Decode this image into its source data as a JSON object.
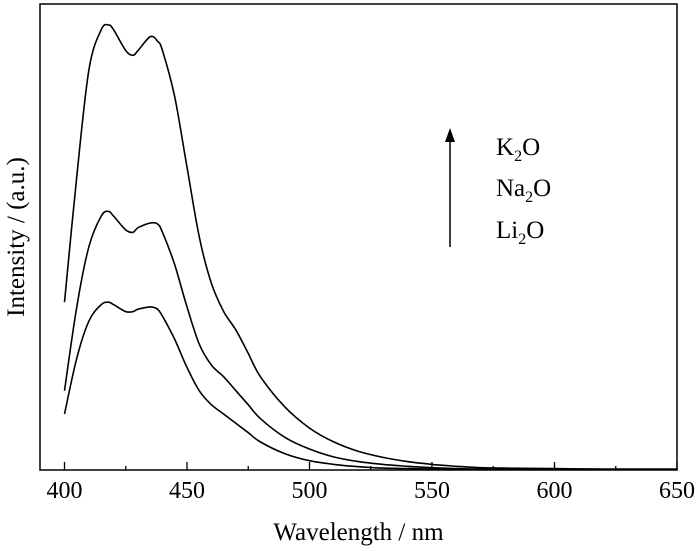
{
  "chart_data": {
    "type": "line",
    "xlabel": "Wavelength / nm",
    "ylabel": "Intensity / (a.u.)",
    "xlim": [
      390,
      650
    ],
    "ylim": [
      0,
      1.0
    ],
    "xticks": [
      400,
      450,
      500,
      550,
      600,
      650
    ],
    "yticks_shown": false,
    "legend_position": "top-right",
    "annotation": {
      "type": "arrow-up",
      "labels": [
        {
          "base": "K",
          "sub": "2",
          "suffix": "O"
        },
        {
          "base": "Na",
          "sub": "2",
          "suffix": "O"
        },
        {
          "base": "Li",
          "sub": "2",
          "suffix": "O"
        }
      ]
    },
    "series": [
      {
        "x": [
          400,
          405,
          410,
          415,
          418,
          420,
          425,
          428,
          430,
          435,
          438,
          440,
          445,
          450,
          455,
          460,
          465,
          470,
          475,
          480,
          490,
          500,
          510,
          520,
          530,
          540,
          550,
          560,
          570,
          580,
          600,
          620,
          650
        ],
        "y": [
          0.36,
          0.63,
          0.86,
          0.945,
          0.955,
          0.945,
          0.9,
          0.89,
          0.9,
          0.93,
          0.92,
          0.9,
          0.8,
          0.65,
          0.5,
          0.4,
          0.34,
          0.3,
          0.25,
          0.2,
          0.135,
          0.09,
          0.06,
          0.04,
          0.027,
          0.018,
          0.012,
          0.008,
          0.005,
          0.004,
          0.003,
          0.002,
          0.002
        ]
      },
      {
        "x": [
          400,
          405,
          410,
          415,
          418,
          420,
          425,
          428,
          430,
          435,
          438,
          440,
          445,
          450,
          455,
          460,
          465,
          470,
          475,
          480,
          490,
          500,
          510,
          520,
          530,
          540,
          550,
          560,
          570,
          580,
          600,
          620,
          650
        ],
        "y": [
          0.17,
          0.35,
          0.48,
          0.545,
          0.555,
          0.545,
          0.515,
          0.51,
          0.52,
          0.53,
          0.528,
          0.51,
          0.44,
          0.35,
          0.27,
          0.225,
          0.2,
          0.17,
          0.14,
          0.11,
          0.07,
          0.045,
          0.028,
          0.018,
          0.012,
          0.008,
          0.005,
          0.003,
          0.002,
          0.002,
          0.001,
          0.001,
          0.001
        ]
      },
      {
        "x": [
          400,
          405,
          410,
          415,
          418,
          420,
          425,
          428,
          430,
          435,
          438,
          440,
          445,
          450,
          455,
          460,
          465,
          470,
          475,
          480,
          490,
          500,
          510,
          520,
          530,
          540,
          550,
          560,
          570,
          580,
          600,
          620,
          650
        ],
        "y": [
          0.12,
          0.24,
          0.32,
          0.355,
          0.36,
          0.355,
          0.34,
          0.34,
          0.345,
          0.35,
          0.345,
          0.33,
          0.28,
          0.22,
          0.17,
          0.14,
          0.12,
          0.1,
          0.08,
          0.06,
          0.035,
          0.02,
          0.012,
          0.007,
          0.004,
          0.003,
          0.002,
          0.001,
          0.001,
          0.001,
          0.001,
          0.001,
          0.001
        ]
      }
    ]
  }
}
